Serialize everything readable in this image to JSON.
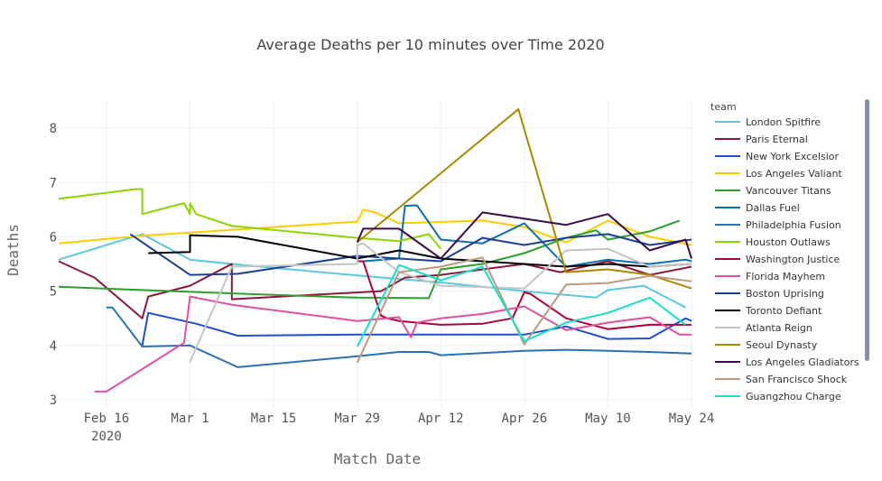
{
  "chart_data": {
    "type": "line",
    "title": "Average Deaths per 10 minutes over Time 2020",
    "xlabel": "Match Date",
    "ylabel": "Deaths",
    "x_ticks": [
      {
        "date": "2020-02-16",
        "label": "Feb 16",
        "sublabel": "2020"
      },
      {
        "date": "2020-03-01",
        "label": "Mar 1"
      },
      {
        "date": "2020-03-15",
        "label": "Mar 15"
      },
      {
        "date": "2020-03-29",
        "label": "Mar 29"
      },
      {
        "date": "2020-04-12",
        "label": "Apr 12"
      },
      {
        "date": "2020-04-26",
        "label": "Apr 26"
      },
      {
        "date": "2020-05-10",
        "label": "May 10"
      },
      {
        "date": "2020-05-24",
        "label": "May 24"
      }
    ],
    "xlim": [
      "2020-02-08",
      "2020-05-24"
    ],
    "ylim": [
      2.85,
      8.5
    ],
    "y_ticks": [
      3,
      4,
      5,
      6,
      7,
      8
    ],
    "grid": true,
    "legend": {
      "title": "team",
      "position": "right"
    },
    "series": [
      {
        "name": "London Spitfire",
        "color": "#5bc8dc",
        "points": [
          [
            "2020-02-08",
            5.58
          ],
          [
            "2020-02-22",
            6.05
          ],
          [
            "2020-03-01",
            5.58
          ],
          [
            "2020-03-08",
            5.5
          ],
          [
            "2020-03-30",
            5.28
          ],
          [
            "2020-04-13",
            5.15
          ],
          [
            "2020-04-26",
            5.0
          ],
          [
            "2020-05-08",
            4.88
          ],
          [
            "2020-05-10",
            5.02
          ],
          [
            "2020-05-16",
            5.1
          ],
          [
            "2020-05-23",
            4.7
          ]
        ]
      },
      {
        "name": "Paris Eternal",
        "color": "#8b1a3a",
        "points": [
          [
            "2020-02-08",
            5.55
          ],
          [
            "2020-02-14",
            5.25
          ],
          [
            "2020-02-22",
            4.5
          ],
          [
            "2020-02-23",
            4.9
          ],
          [
            "2020-03-01",
            5.1
          ],
          [
            "2020-03-08",
            5.5
          ],
          [
            "2020-03-08",
            4.85
          ],
          [
            "2020-04-02",
            5.0
          ],
          [
            "2020-04-06",
            5.25
          ],
          [
            "2020-04-12",
            5.3
          ],
          [
            "2020-04-26",
            5.5
          ],
          [
            "2020-05-02",
            5.35
          ],
          [
            "2020-05-10",
            5.55
          ],
          [
            "2020-05-17",
            5.3
          ],
          [
            "2020-05-24",
            5.45
          ]
        ]
      },
      {
        "name": "New York Excelsior",
        "color": "#1f4fd1",
        "points": [
          [
            "2020-02-22",
            4.0
          ],
          [
            "2020-02-23",
            4.6
          ],
          [
            "2020-03-02",
            4.4
          ],
          [
            "2020-03-09",
            4.18
          ],
          [
            "2020-03-29",
            4.2
          ],
          [
            "2020-04-13",
            4.2
          ],
          [
            "2020-04-26",
            4.2
          ],
          [
            "2020-05-03",
            4.35
          ],
          [
            "2020-05-10",
            4.12
          ],
          [
            "2020-05-17",
            4.13
          ],
          [
            "2020-05-23",
            4.5
          ],
          [
            "2020-05-24",
            4.45
          ]
        ]
      },
      {
        "name": "Los Angeles Valiant",
        "color": "#ffcc00",
        "points": [
          [
            "2020-02-08",
            5.88
          ],
          [
            "2020-02-22",
            6.02
          ],
          [
            "2020-03-29",
            6.28
          ],
          [
            "2020-03-30",
            6.5
          ],
          [
            "2020-04-01",
            6.45
          ],
          [
            "2020-04-05",
            6.25
          ],
          [
            "2020-04-19",
            6.3
          ],
          [
            "2020-04-26",
            6.18
          ],
          [
            "2020-05-03",
            5.9
          ],
          [
            "2020-05-10",
            6.3
          ],
          [
            "2020-05-17",
            6.0
          ],
          [
            "2020-05-24",
            5.85
          ]
        ]
      },
      {
        "name": "Vancouver Titans",
        "color": "#2ca02c",
        "points": [
          [
            "2020-02-08",
            5.08
          ],
          [
            "2020-02-22",
            5.02
          ],
          [
            "2020-03-15",
            4.93
          ],
          [
            "2020-03-29",
            4.88
          ],
          [
            "2020-04-10",
            4.87
          ],
          [
            "2020-04-12",
            5.4
          ],
          [
            "2020-04-19",
            5.5
          ],
          [
            "2020-04-26",
            5.7
          ],
          [
            "2020-05-03",
            5.98
          ],
          [
            "2020-05-08",
            6.12
          ],
          [
            "2020-05-10",
            5.95
          ],
          [
            "2020-05-17",
            6.1
          ],
          [
            "2020-05-22",
            6.3
          ]
        ]
      },
      {
        "name": "Dallas Fuel",
        "color": "#0e6fb0",
        "points": [
          [
            "2020-03-30",
            5.55
          ],
          [
            "2020-04-05",
            5.6
          ],
          [
            "2020-04-06",
            6.57
          ],
          [
            "2020-04-08",
            6.58
          ],
          [
            "2020-04-12",
            5.95
          ],
          [
            "2020-04-19",
            5.88
          ],
          [
            "2020-04-26",
            6.25
          ],
          [
            "2020-05-03",
            5.45
          ],
          [
            "2020-05-10",
            5.58
          ],
          [
            "2020-05-17",
            5.5
          ],
          [
            "2020-05-23",
            5.58
          ],
          [
            "2020-05-24",
            5.55
          ]
        ]
      },
      {
        "name": "Philadelphia Fusion",
        "color": "#2a72b4",
        "points": [
          [
            "2020-02-16",
            4.7
          ],
          [
            "2020-02-17",
            4.7
          ],
          [
            "2020-02-22",
            3.98
          ],
          [
            "2020-03-01",
            4.0
          ],
          [
            "2020-03-09",
            3.6
          ],
          [
            "2020-03-29",
            3.8
          ],
          [
            "2020-04-05",
            3.88
          ],
          [
            "2020-04-10",
            3.88
          ],
          [
            "2020-04-12",
            3.82
          ],
          [
            "2020-04-26",
            3.9
          ],
          [
            "2020-05-03",
            3.92
          ],
          [
            "2020-05-10",
            3.9
          ],
          [
            "2020-05-17",
            3.88
          ],
          [
            "2020-05-24",
            3.85
          ]
        ]
      },
      {
        "name": "Houston Outlaws",
        "color": "#8fd400",
        "points": [
          [
            "2020-02-08",
            6.7
          ],
          [
            "2020-02-21",
            6.88
          ],
          [
            "2020-02-22",
            6.88
          ],
          [
            "2020-02-22",
            6.42
          ],
          [
            "2020-02-29",
            6.62
          ],
          [
            "2020-03-01",
            6.42
          ],
          [
            "2020-03-01",
            6.62
          ],
          [
            "2020-03-02",
            6.42
          ],
          [
            "2020-03-08",
            6.2
          ],
          [
            "2020-03-29",
            5.98
          ],
          [
            "2020-04-05",
            5.92
          ],
          [
            "2020-04-10",
            6.05
          ],
          [
            "2020-04-12",
            5.78
          ]
        ]
      },
      {
        "name": "Washington Justice",
        "color": "#b0003a",
        "points": [
          [
            "2020-03-29",
            5.55
          ],
          [
            "2020-03-30",
            5.55
          ],
          [
            "2020-04-02",
            4.55
          ],
          [
            "2020-04-03",
            4.5
          ],
          [
            "2020-04-05",
            4.45
          ],
          [
            "2020-04-12",
            4.38
          ],
          [
            "2020-04-19",
            4.4
          ],
          [
            "2020-04-24",
            4.5
          ],
          [
            "2020-04-26",
            4.98
          ],
          [
            "2020-04-27",
            4.95
          ],
          [
            "2020-05-03",
            4.5
          ],
          [
            "2020-05-10",
            4.3
          ],
          [
            "2020-05-17",
            4.38
          ],
          [
            "2020-05-24",
            4.38
          ]
        ]
      },
      {
        "name": "Florida Mayhem",
        "color": "#e050a0",
        "points": [
          [
            "2020-02-14",
            3.15
          ],
          [
            "2020-02-16",
            3.15
          ],
          [
            "2020-02-29",
            4.05
          ],
          [
            "2020-03-01",
            4.9
          ],
          [
            "2020-03-08",
            4.75
          ],
          [
            "2020-03-29",
            4.45
          ],
          [
            "2020-04-05",
            4.52
          ],
          [
            "2020-04-07",
            4.15
          ],
          [
            "2020-04-08",
            4.42
          ],
          [
            "2020-04-12",
            4.5
          ],
          [
            "2020-04-19",
            4.58
          ],
          [
            "2020-04-26",
            4.72
          ],
          [
            "2020-05-03",
            4.28
          ],
          [
            "2020-05-10",
            4.42
          ],
          [
            "2020-05-17",
            4.52
          ],
          [
            "2020-05-22",
            4.2
          ],
          [
            "2020-05-24",
            4.2
          ]
        ]
      },
      {
        "name": "Boston Uprising",
        "color": "#1b3f94",
        "points": [
          [
            "2020-02-20",
            6.05
          ],
          [
            "2020-03-01",
            5.3
          ],
          [
            "2020-03-09",
            5.32
          ],
          [
            "2020-03-29",
            5.65
          ],
          [
            "2020-04-12",
            5.55
          ],
          [
            "2020-04-19",
            5.98
          ],
          [
            "2020-04-26",
            5.85
          ],
          [
            "2020-05-03",
            5.98
          ],
          [
            "2020-05-10",
            6.05
          ],
          [
            "2020-05-17",
            5.85
          ],
          [
            "2020-05-24",
            5.95
          ]
        ]
      },
      {
        "name": "Toronto Defiant",
        "color": "#000000",
        "points": [
          [
            "2020-02-23",
            5.7
          ],
          [
            "2020-03-01",
            5.72
          ],
          [
            "2020-03-01",
            6.03
          ],
          [
            "2020-03-09",
            6.0
          ],
          [
            "2020-03-29",
            5.6
          ],
          [
            "2020-04-05",
            5.75
          ],
          [
            "2020-04-12",
            5.6
          ],
          [
            "2020-04-19",
            5.55
          ],
          [
            "2020-04-26",
            5.5
          ],
          [
            "2020-05-03",
            5.45
          ],
          [
            "2020-05-10",
            5.5
          ],
          [
            "2020-05-17",
            5.45
          ],
          [
            "2020-05-24",
            5.5
          ]
        ]
      },
      {
        "name": "Atlanta Reign",
        "color": "#c4c4c4",
        "points": [
          [
            "2020-03-01",
            3.7
          ],
          [
            "2020-03-08",
            5.45
          ],
          [
            "2020-03-29",
            5.5
          ],
          [
            "2020-03-29",
            5.85
          ],
          [
            "2020-03-30",
            5.88
          ],
          [
            "2020-04-05",
            5.35
          ],
          [
            "2020-04-12",
            5.1
          ],
          [
            "2020-04-26",
            5.05
          ],
          [
            "2020-05-03",
            5.75
          ],
          [
            "2020-05-10",
            5.78
          ],
          [
            "2020-05-17",
            5.45
          ],
          [
            "2020-05-24",
            5.5
          ]
        ]
      },
      {
        "name": "Seoul Dynasty",
        "color": "#aa8800",
        "points": [
          [
            "2020-03-29",
            5.9
          ],
          [
            "2020-04-25",
            8.35
          ],
          [
            "2020-05-03",
            5.35
          ],
          [
            "2020-05-10",
            5.4
          ],
          [
            "2020-05-17",
            5.3
          ],
          [
            "2020-05-24",
            5.05
          ]
        ]
      },
      {
        "name": "Los Angeles Gladiators",
        "color": "#3a0d4a",
        "points": [
          [
            "2020-03-29",
            5.9
          ],
          [
            "2020-03-30",
            6.15
          ],
          [
            "2020-04-05",
            6.15
          ],
          [
            "2020-04-12",
            5.6
          ],
          [
            "2020-04-19",
            6.45
          ],
          [
            "2020-05-03",
            6.22
          ],
          [
            "2020-05-10",
            6.42
          ],
          [
            "2020-05-17",
            5.75
          ],
          [
            "2020-05-23",
            5.95
          ],
          [
            "2020-05-24",
            5.6
          ]
        ]
      },
      {
        "name": "San Francisco Shock",
        "color": "#bb9a80",
        "points": [
          [
            "2020-03-29",
            3.68
          ],
          [
            "2020-04-05",
            5.35
          ],
          [
            "2020-04-12",
            5.45
          ],
          [
            "2020-04-19",
            5.62
          ],
          [
            "2020-04-26",
            4.02
          ],
          [
            "2020-05-03",
            5.12
          ],
          [
            "2020-05-10",
            5.15
          ],
          [
            "2020-05-17",
            5.28
          ],
          [
            "2020-05-24",
            5.18
          ]
        ]
      },
      {
        "name": "Guangzhou Charge",
        "color": "#17e0c8",
        "points": [
          [
            "2020-03-29",
            3.98
          ],
          [
            "2020-04-05",
            5.48
          ],
          [
            "2020-04-12",
            5.2
          ],
          [
            "2020-04-19",
            5.45
          ],
          [
            "2020-04-26",
            4.08
          ],
          [
            "2020-05-03",
            4.42
          ],
          [
            "2020-05-10",
            4.6
          ],
          [
            "2020-05-17",
            4.88
          ],
          [
            "2020-05-23",
            4.38
          ]
        ]
      }
    ]
  }
}
